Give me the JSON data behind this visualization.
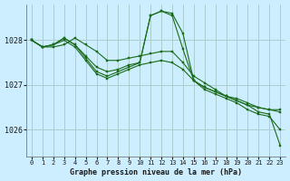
{
  "title": "Graphe pression niveau de la mer (hPa)",
  "background_color": "#cceeff",
  "grid_color": "#aacccc",
  "line_color": "#1a6b1a",
  "xlim": [
    -0.5,
    23.5
  ],
  "ylim": [
    1025.4,
    1028.8
  ],
  "yticks": [
    1026,
    1027,
    1028
  ],
  "xticks": [
    0,
    1,
    2,
    3,
    4,
    5,
    6,
    7,
    8,
    9,
    10,
    11,
    12,
    13,
    14,
    15,
    16,
    17,
    18,
    19,
    20,
    21,
    22,
    23
  ],
  "series": [
    [
      1028.0,
      1027.85,
      1027.85,
      1027.9,
      1028.05,
      1027.9,
      1027.75,
      1027.55,
      1027.55,
      1027.6,
      1027.65,
      1027.7,
      1027.75,
      1027.75,
      1027.5,
      1027.2,
      1027.05,
      1026.9,
      1026.75,
      1026.65,
      1026.55,
      1026.5,
      1026.45,
      1026.4
    ],
    [
      1028.0,
      1027.85,
      1027.9,
      1028.05,
      1027.9,
      1027.65,
      1027.4,
      1027.3,
      1027.35,
      1027.45,
      1027.5,
      1028.55,
      1028.65,
      1028.6,
      1028.15,
      1027.1,
      1026.95,
      1026.85,
      1026.75,
      1026.7,
      1026.6,
      1026.5,
      1026.45,
      1026.45
    ],
    [
      1028.0,
      1027.85,
      1027.9,
      1028.05,
      1027.9,
      1027.6,
      1027.3,
      1027.2,
      1027.3,
      1027.4,
      1027.5,
      1028.55,
      1028.65,
      1028.55,
      1027.8,
      1027.1,
      1026.95,
      1026.85,
      1026.75,
      1026.65,
      1026.55,
      1026.4,
      1026.35,
      1025.65
    ],
    [
      1028.0,
      1027.85,
      1027.9,
      1028.0,
      1027.85,
      1027.55,
      1027.25,
      1027.15,
      1027.25,
      1027.35,
      1027.45,
      1027.5,
      1027.55,
      1027.5,
      1027.35,
      1027.1,
      1026.9,
      1026.8,
      1026.7,
      1026.6,
      1026.45,
      1026.35,
      1026.3,
      1026.0
    ]
  ]
}
